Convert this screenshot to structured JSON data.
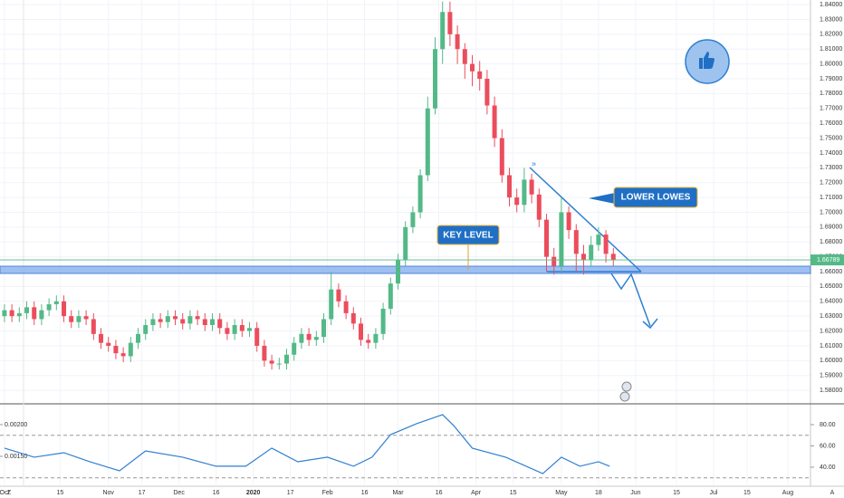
{
  "chart_data": {
    "type": "candlestick",
    "up_color": "#53b987",
    "down_color": "#eb4d5c",
    "xlim": [
      -1.2,
      217.1
    ],
    "xticks": [
      {
        "value": 0,
        "label": "Oct"
      },
      {
        "value": 15,
        "label": "15"
      },
      {
        "value": 28,
        "label": "Nov"
      },
      {
        "value": 37,
        "label": "17"
      },
      {
        "value": 47,
        "label": "Dec"
      },
      {
        "value": 57,
        "label": "16"
      },
      {
        "value": 67,
        "label": "2020"
      },
      {
        "value": 77,
        "label": "17"
      },
      {
        "value": 87,
        "label": "Feb"
      },
      {
        "value": 97,
        "label": "16"
      },
      {
        "value": 106,
        "label": "Mar"
      },
      {
        "value": 117,
        "label": "16"
      },
      {
        "value": 127,
        "label": "Apr"
      },
      {
        "value": 137,
        "label": "15"
      },
      {
        "value": 150,
        "label": "May"
      },
      {
        "value": 160,
        "label": "18"
      },
      {
        "value": 170,
        "label": "Jun"
      },
      {
        "value": 181,
        "label": "15"
      },
      {
        "value": 191,
        "label": "Jul"
      },
      {
        "value": 200,
        "label": "15"
      },
      {
        "value": 211,
        "label": "Aug"
      }
    ],
    "ylim": [
      1.5709,
      1.8431
    ],
    "yticks": [
      {
        "value": 1.58,
        "label": "1.58000"
      },
      {
        "value": 1.59,
        "label": "1.59000"
      },
      {
        "value": 1.6,
        "label": "1.60000"
      },
      {
        "value": 1.61,
        "label": "1.61000"
      },
      {
        "value": 1.62,
        "label": "1.62000"
      },
      {
        "value": 1.63,
        "label": "1.63000"
      },
      {
        "value": 1.64,
        "label": "1.64000"
      },
      {
        "value": 1.65,
        "label": "1.65000"
      },
      {
        "value": 1.66,
        "label": "1.66000"
      },
      {
        "value": 1.67,
        "label": "1.67000"
      },
      {
        "value": 1.68,
        "label": "1.68000"
      },
      {
        "value": 1.69,
        "label": "1.69000"
      },
      {
        "value": 1.7,
        "label": "1.70000"
      },
      {
        "value": 1.71,
        "label": "1.71000"
      },
      {
        "value": 1.72,
        "label": "1.72000"
      },
      {
        "value": 1.73,
        "label": "1.73000"
      },
      {
        "value": 1.74,
        "label": "1.74000"
      },
      {
        "value": 1.75,
        "label": "1.75000"
      },
      {
        "value": 1.76,
        "label": "1.76000"
      },
      {
        "value": 1.77,
        "label": "1.77000"
      },
      {
        "value": 1.78,
        "label": "1.78000"
      },
      {
        "value": 1.79,
        "label": "1.79000"
      },
      {
        "value": 1.8,
        "label": "1.80000"
      },
      {
        "value": 1.81,
        "label": "1.81000"
      },
      {
        "value": 1.82,
        "label": "1.82000"
      },
      {
        "value": 1.83,
        "label": "1.83000"
      },
      {
        "value": 1.84,
        "label": "1.84000"
      }
    ],
    "last_price": {
      "value": 1.66789,
      "label": "1.66789"
    },
    "annotations": [
      "KEY LEVEL",
      "LOWER LOWES"
    ],
    "controls": [
      "Z",
      "A"
    ],
    "series": [
      {
        "x": [
          0,
          2,
          4,
          6,
          8,
          10,
          12,
          14,
          16,
          18,
          20,
          22,
          24,
          26,
          28,
          30,
          32,
          34,
          36,
          38,
          40,
          42,
          44,
          46,
          48,
          50,
          52,
          54,
          56,
          58,
          60,
          62,
          64,
          66,
          68,
          70,
          72,
          74,
          76,
          78,
          80,
          82,
          84,
          86,
          88,
          90,
          92,
          94,
          96,
          98,
          100,
          102,
          104,
          106,
          108,
          110,
          112,
          114,
          116,
          118,
          120,
          122,
          124,
          126,
          128,
          130,
          132,
          134,
          136,
          138,
          140,
          142,
          144,
          146,
          148,
          150,
          152,
          154,
          156,
          158,
          160,
          162,
          164
        ],
        "open": [
          1.63,
          1.634,
          1.63,
          1.632,
          1.636,
          1.628,
          1.634,
          1.638,
          1.64,
          1.63,
          1.626,
          1.63,
          1.628,
          1.618,
          1.612,
          1.61,
          1.605,
          1.603,
          1.612,
          1.618,
          1.624,
          1.628,
          1.626,
          1.63,
          1.628,
          1.625,
          1.63,
          1.628,
          1.624,
          1.628,
          1.622,
          1.618,
          1.624,
          1.62,
          1.622,
          1.61,
          1.6,
          1.598,
          1.598,
          1.604,
          1.612,
          1.618,
          1.614,
          1.616,
          1.628,
          1.648,
          1.64,
          1.632,
          1.625,
          1.614,
          1.612,
          1.618,
          1.635,
          1.652,
          1.668,
          1.69,
          1.7,
          1.725,
          1.77,
          1.81,
          1.835,
          1.82,
          1.81,
          1.8,
          1.795,
          1.79,
          1.772,
          1.75,
          1.725,
          1.71,
          1.705,
          1.722,
          1.712,
          1.695,
          1.67,
          1.664,
          1.7,
          1.688,
          1.672,
          1.668,
          1.678,
          1.685,
          1.672
        ],
        "high": [
          1.638,
          1.638,
          1.636,
          1.64,
          1.64,
          1.638,
          1.642,
          1.644,
          1.644,
          1.634,
          1.634,
          1.634,
          1.632,
          1.622,
          1.616,
          1.614,
          1.609,
          1.616,
          1.622,
          1.628,
          1.632,
          1.632,
          1.634,
          1.634,
          1.632,
          1.634,
          1.634,
          1.632,
          1.632,
          1.632,
          1.626,
          1.628,
          1.628,
          1.626,
          1.626,
          1.614,
          1.604,
          1.602,
          1.608,
          1.616,
          1.622,
          1.622,
          1.62,
          1.632,
          1.66,
          1.652,
          1.644,
          1.636,
          1.629,
          1.618,
          1.622,
          1.639,
          1.656,
          1.672,
          1.694,
          1.704,
          1.729,
          1.778,
          1.818,
          1.842,
          1.842,
          1.826,
          1.814,
          1.806,
          1.802,
          1.796,
          1.778,
          1.756,
          1.73,
          1.716,
          1.73,
          1.726,
          1.716,
          1.699,
          1.676,
          1.71,
          1.704,
          1.692,
          1.678,
          1.684,
          1.69,
          1.688,
          1.676
        ],
        "low": [
          1.626,
          1.626,
          1.626,
          1.628,
          1.624,
          1.624,
          1.63,
          1.634,
          1.626,
          1.622,
          1.622,
          1.624,
          1.614,
          1.608,
          1.606,
          1.601,
          1.599,
          1.599,
          1.608,
          1.614,
          1.62,
          1.622,
          1.622,
          1.624,
          1.621,
          1.621,
          1.624,
          1.62,
          1.62,
          1.618,
          1.614,
          1.614,
          1.616,
          1.616,
          1.606,
          1.596,
          1.594,
          1.594,
          1.594,
          1.6,
          1.608,
          1.61,
          1.61,
          1.612,
          1.624,
          1.636,
          1.628,
          1.621,
          1.61,
          1.608,
          1.608,
          1.614,
          1.631,
          1.648,
          1.664,
          1.686,
          1.696,
          1.721,
          1.766,
          1.8,
          1.812,
          1.8,
          1.79,
          1.785,
          1.782,
          1.766,
          1.744,
          1.72,
          1.704,
          1.7,
          1.7,
          1.706,
          1.69,
          1.66,
          1.658,
          1.66,
          1.682,
          1.66,
          1.658,
          1.664,
          1.674,
          1.666,
          1.664
        ],
        "close": [
          1.634,
          1.63,
          1.632,
          1.636,
          1.628,
          1.634,
          1.638,
          1.64,
          1.63,
          1.626,
          1.63,
          1.628,
          1.618,
          1.612,
          1.61,
          1.605,
          1.603,
          1.612,
          1.618,
          1.624,
          1.628,
          1.626,
          1.63,
          1.628,
          1.625,
          1.63,
          1.628,
          1.624,
          1.628,
          1.622,
          1.618,
          1.624,
          1.62,
          1.622,
          1.61,
          1.6,
          1.598,
          1.598,
          1.604,
          1.612,
          1.618,
          1.614,
          1.616,
          1.628,
          1.648,
          1.64,
          1.632,
          1.625,
          1.614,
          1.612,
          1.618,
          1.635,
          1.652,
          1.668,
          1.69,
          1.7,
          1.725,
          1.77,
          1.81,
          1.835,
          1.82,
          1.81,
          1.8,
          1.795,
          1.79,
          1.772,
          1.75,
          1.725,
          1.71,
          1.705,
          1.722,
          1.712,
          1.695,
          1.67,
          1.664,
          1.7,
          1.688,
          1.672,
          1.668,
          1.678,
          1.685,
          1.672,
          1.668
        ]
      }
    ],
    "indicator": {
      "type": "line",
      "color": "#2f7fd1",
      "ylim": [
        0.001057,
        0.002314
      ],
      "yticks": [
        {
          "value": 0.0015,
          "label": "0.00150"
        },
        {
          "value": 0.002,
          "label": "0.00200"
        }
      ],
      "y2lim": [
        23.8,
        98.7
      ],
      "y2ticks": [
        {
          "value": 40,
          "label": "40.00"
        },
        {
          "value": 60,
          "label": "60.00"
        },
        {
          "value": 80,
          "label": "80.00"
        }
      ],
      "bands": [
        70,
        30
      ],
      "series": [
        {
          "axis": "y2",
          "x": [
            0,
            8,
            16,
            23,
            31,
            38,
            48,
            57,
            65,
            72,
            79,
            87,
            94,
            99,
            104,
            111,
            118,
            121,
            126,
            135,
            145,
            150,
            155,
            160,
            163
          ],
          "values": [
            57.9,
            49.4,
            53.6,
            45.1,
            36.6,
            55.3,
            49.4,
            40.9,
            40.9,
            57.9,
            45.1,
            49.4,
            40.9,
            49.4,
            70.6,
            80.9,
            89.4,
            79.1,
            57.9,
            49.4,
            34.0,
            49.4,
            40.9,
            45.1,
            40.9
          ]
        }
      ]
    }
  }
}
